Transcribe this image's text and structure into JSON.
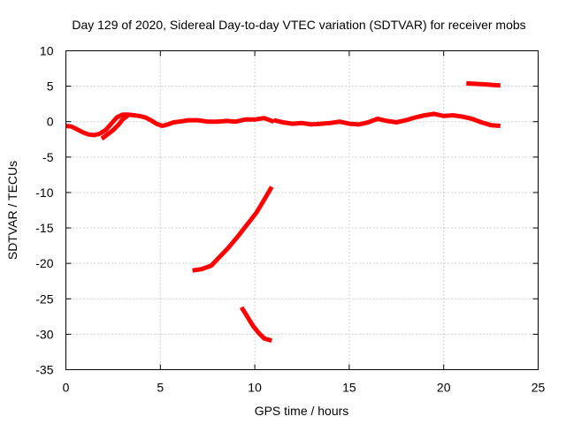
{
  "chart_data": {
    "type": "scatter",
    "title": "Day 129 of 2020, Sidereal Day-to-day VTEC variation (SDTVAR) for receiver mobs",
    "xlabel": "GPS time / hours",
    "ylabel": "SDTVAR / TECUs",
    "xlim": [
      0,
      25
    ],
    "ylim": [
      -35,
      10
    ],
    "x_ticks": [
      0,
      5,
      10,
      15,
      20,
      25
    ],
    "y_ticks": [
      10,
      5,
      0,
      -5,
      -10,
      -15,
      -20,
      -25,
      -30,
      -35
    ],
    "grid": true,
    "color": "#ff0000",
    "series": [
      {
        "name": "arc-1",
        "points": [
          [
            0,
            -0.6
          ],
          [
            0.3,
            -0.7
          ],
          [
            0.6,
            -1.1
          ],
          [
            0.9,
            -1.5
          ],
          [
            1.2,
            -1.8
          ],
          [
            1.5,
            -1.9
          ],
          [
            1.8,
            -1.7
          ],
          [
            2.1,
            -1.2
          ],
          [
            2.4,
            -0.3
          ],
          [
            2.7,
            0.6
          ],
          [
            3.0,
            1.0
          ],
          [
            3.3,
            1.0
          ],
          [
            3.6,
            0.9
          ],
          [
            3.9,
            0.8
          ],
          [
            4.2,
            0.6
          ],
          [
            4.5,
            0.2
          ],
          [
            4.8,
            -0.3
          ],
          [
            5.1,
            -0.6
          ],
          [
            5.4,
            -0.4
          ],
          [
            5.7,
            -0.1
          ],
          [
            6.0,
            0.0
          ],
          [
            6.5,
            0.2
          ],
          [
            7.0,
            0.2
          ],
          [
            7.5,
            0.0
          ],
          [
            8.0,
            0.0
          ],
          [
            8.5,
            0.1
          ],
          [
            9.0,
            0.0
          ],
          [
            9.5,
            0.3
          ],
          [
            10.0,
            0.3
          ],
          [
            10.5,
            0.5
          ],
          [
            11.0,
            0.0
          ]
        ]
      },
      {
        "name": "arc-2",
        "points": [
          [
            1.9,
            -2.4
          ],
          [
            2.2,
            -1.8
          ],
          [
            2.5,
            -1.2
          ],
          [
            2.8,
            -0.4
          ],
          [
            3.0,
            0.3
          ],
          [
            3.3,
            0.9
          ]
        ]
      },
      {
        "name": "arc-3",
        "points": [
          [
            11.0,
            0.2
          ],
          [
            11.5,
            -0.1
          ],
          [
            12.0,
            -0.3
          ],
          [
            12.5,
            -0.2
          ],
          [
            13.0,
            -0.4
          ],
          [
            13.5,
            -0.3
          ],
          [
            14.0,
            -0.2
          ],
          [
            14.5,
            0.0
          ],
          [
            15.0,
            -0.3
          ],
          [
            15.5,
            -0.4
          ],
          [
            16.0,
            -0.1
          ],
          [
            16.5,
            0.4
          ],
          [
            17.0,
            0.1
          ],
          [
            17.5,
            -0.1
          ],
          [
            18.0,
            0.2
          ],
          [
            18.5,
            0.6
          ],
          [
            19.0,
            0.9
          ],
          [
            19.5,
            1.1
          ],
          [
            20.0,
            0.8
          ],
          [
            20.5,
            0.9
          ],
          [
            21.0,
            0.7
          ],
          [
            21.5,
            0.4
          ],
          [
            22.0,
            -0.1
          ],
          [
            22.5,
            -0.5
          ],
          [
            23.0,
            -0.6
          ]
        ]
      },
      {
        "name": "arc-4",
        "points": [
          [
            21.2,
            5.4
          ],
          [
            22.0,
            5.3
          ],
          [
            23.0,
            5.1
          ]
        ]
      },
      {
        "name": "arc-5",
        "points": [
          [
            6.7,
            -21.0
          ],
          [
            7.2,
            -20.8
          ],
          [
            7.7,
            -20.3
          ],
          [
            8.1,
            -19.2
          ],
          [
            8.6,
            -17.8
          ],
          [
            9.1,
            -16.2
          ],
          [
            9.6,
            -14.5
          ],
          [
            10.1,
            -12.8
          ],
          [
            10.5,
            -11.0
          ],
          [
            10.9,
            -9.2
          ]
        ]
      },
      {
        "name": "arc-6",
        "points": [
          [
            9.3,
            -26.2
          ],
          [
            9.6,
            -27.5
          ],
          [
            9.9,
            -28.8
          ],
          [
            10.2,
            -29.8
          ],
          [
            10.5,
            -30.6
          ],
          [
            10.9,
            -30.9
          ]
        ]
      }
    ]
  }
}
